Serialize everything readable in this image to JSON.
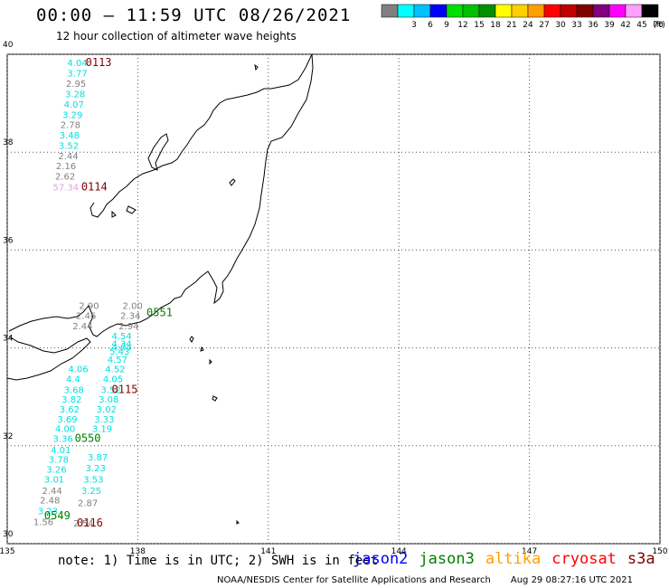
{
  "header": {
    "title": "00:00 – 11:59 UTC 08/26/2021",
    "subtitle": "12 hour collection of altimeter wave heights"
  },
  "legend": {
    "unit": "(ft)",
    "bins": [
      {
        "color": "#808080",
        "label": ""
      },
      {
        "color": "#00ffff",
        "label": "3"
      },
      {
        "color": "#00c0ff",
        "label": "6"
      },
      {
        "color": "#0000ff",
        "label": "9"
      },
      {
        "color": "#00e000",
        "label": "12"
      },
      {
        "color": "#00c000",
        "label": "15"
      },
      {
        "color": "#009000",
        "label": "18"
      },
      {
        "color": "#ffff00",
        "label": "21"
      },
      {
        "color": "#ffd000",
        "label": "24"
      },
      {
        "color": "#ffa000",
        "label": "27"
      },
      {
        "color": "#ff0000",
        "label": "30"
      },
      {
        "color": "#c00000",
        "label": "33"
      },
      {
        "color": "#800000",
        "label": "36"
      },
      {
        "color": "#800080",
        "label": "39"
      },
      {
        "color": "#ff00ff",
        "label": "42"
      },
      {
        "color": "#ffa0ff",
        "label": "45"
      },
      {
        "color": "#000000",
        "label": "70"
      }
    ]
  },
  "axes": {
    "lon_labels": [
      "135",
      "138",
      "141",
      "144",
      "147",
      "150"
    ],
    "lat_labels": [
      "30",
      "32",
      "34",
      "36",
      "38",
      "40"
    ]
  },
  "map": {
    "lon_range": [
      135,
      150
    ],
    "lat_range": [
      30,
      40
    ]
  },
  "wave_heights": [
    {
      "text": "4.04",
      "lon": 136.38,
      "lat": 39.76,
      "color": "#00e0e0"
    },
    {
      "text": "3.77",
      "lon": 136.38,
      "lat": 39.55,
      "color": "#00e0e0"
    },
    {
      "text": "2.95",
      "lon": 136.35,
      "lat": 39.33,
      "color": "#808080"
    },
    {
      "text": "3.28",
      "lon": 136.33,
      "lat": 39.12,
      "color": "#00e0e0"
    },
    {
      "text": "4.07",
      "lon": 136.3,
      "lat": 38.91,
      "color": "#00e0e0"
    },
    {
      "text": "3.29",
      "lon": 136.27,
      "lat": 38.7,
      "color": "#00e0e0"
    },
    {
      "text": "2.78",
      "lon": 136.22,
      "lat": 38.49,
      "color": "#808080"
    },
    {
      "text": "3.48",
      "lon": 136.2,
      "lat": 38.28,
      "color": "#00e0e0"
    },
    {
      "text": "3.52",
      "lon": 136.18,
      "lat": 38.07,
      "color": "#00e0e0"
    },
    {
      "text": "2.44",
      "lon": 136.17,
      "lat": 37.86,
      "color": "#808080"
    },
    {
      "text": "2.16",
      "lon": 136.12,
      "lat": 37.65,
      "color": "#808080"
    },
    {
      "text": "2.62",
      "lon": 136.1,
      "lat": 37.44,
      "color": "#808080"
    },
    {
      "text": "57.34",
      "lon": 136.05,
      "lat": 37.22,
      "color": "#e0a0e0"
    },
    {
      "text": "2.90",
      "lon": 136.65,
      "lat": 34.8,
      "color": "#808080"
    },
    {
      "text": "2.46",
      "lon": 136.58,
      "lat": 34.59,
      "color": "#808080"
    },
    {
      "text": "2.44",
      "lon": 136.5,
      "lat": 34.38,
      "color": "#808080"
    },
    {
      "text": "2.00",
      "lon": 137.65,
      "lat": 34.8,
      "color": "#808080"
    },
    {
      "text": "2.34",
      "lon": 137.6,
      "lat": 34.59,
      "color": "#808080"
    },
    {
      "text": "2.94",
      "lon": 137.56,
      "lat": 34.38,
      "color": "#808080"
    },
    {
      "text": "4.54",
      "lon": 137.4,
      "lat": 34.18,
      "color": "#00e0e0"
    },
    {
      "text": "4.34",
      "lon": 137.4,
      "lat": 34.02,
      "color": "#00e0e0"
    },
    {
      "text": "5.43",
      "lon": 137.35,
      "lat": 33.86,
      "color": "#00e0e0"
    },
    {
      "text": "4.57",
      "lon": 137.3,
      "lat": 33.7,
      "color": "#00e0e0"
    },
    {
      "text": "4.52",
      "lon": 137.25,
      "lat": 33.5,
      "color": "#00e0e0"
    },
    {
      "text": "4.05",
      "lon": 137.2,
      "lat": 33.3,
      "color": "#00e0e0"
    },
    {
      "text": "3.52",
      "lon": 137.15,
      "lat": 33.08,
      "color": "#00e0e0"
    },
    {
      "text": "3.08",
      "lon": 137.1,
      "lat": 32.88,
      "color": "#00e0e0"
    },
    {
      "text": "3.02",
      "lon": 137.05,
      "lat": 32.68,
      "color": "#00e0e0"
    },
    {
      "text": "3.33",
      "lon": 137.0,
      "lat": 32.48,
      "color": "#00e0e0"
    },
    {
      "text": "3.19",
      "lon": 136.95,
      "lat": 32.28,
      "color": "#00e0e0"
    },
    {
      "text": "3.87",
      "lon": 136.85,
      "lat": 31.7,
      "color": "#00e0e0"
    },
    {
      "text": "3.23",
      "lon": 136.8,
      "lat": 31.48,
      "color": "#00e0e0"
    },
    {
      "text": "3.53",
      "lon": 136.75,
      "lat": 31.25,
      "color": "#00e0e0"
    },
    {
      "text": "3.25",
      "lon": 136.7,
      "lat": 31.02,
      "color": "#00e0e0"
    },
    {
      "text": "2.87",
      "lon": 136.62,
      "lat": 30.77,
      "color": "#808080"
    },
    {
      "text": "2.54",
      "lon": 136.52,
      "lat": 30.35,
      "color": "#808080"
    },
    {
      "text": "4.06",
      "lon": 136.4,
      "lat": 33.5,
      "color": "#00e0e0"
    },
    {
      "text": "4.4",
      "lon": 136.35,
      "lat": 33.3,
      "color": "#00e0e0"
    },
    {
      "text": "3.68",
      "lon": 136.3,
      "lat": 33.08,
      "color": "#00e0e0"
    },
    {
      "text": "3.82",
      "lon": 136.25,
      "lat": 32.88,
      "color": "#00e0e0"
    },
    {
      "text": "3.62",
      "lon": 136.2,
      "lat": 32.68,
      "color": "#00e0e0"
    },
    {
      "text": "3.69",
      "lon": 136.15,
      "lat": 32.48,
      "color": "#00e0e0"
    },
    {
      "text": "4.00",
      "lon": 136.1,
      "lat": 32.28,
      "color": "#00e0e0"
    },
    {
      "text": "3.36",
      "lon": 136.05,
      "lat": 32.08,
      "color": "#00e0e0"
    },
    {
      "text": "4.01",
      "lon": 136.0,
      "lat": 31.85,
      "color": "#00e0e0"
    },
    {
      "text": "3.78",
      "lon": 135.95,
      "lat": 31.65,
      "color": "#00e0e0"
    },
    {
      "text": "3.26",
      "lon": 135.9,
      "lat": 31.45,
      "color": "#00e0e0"
    },
    {
      "text": "3.01",
      "lon": 135.85,
      "lat": 31.25,
      "color": "#00e0e0"
    },
    {
      "text": "2.44",
      "lon": 135.8,
      "lat": 31.02,
      "color": "#808080"
    },
    {
      "text": "2.48",
      "lon": 135.75,
      "lat": 30.82,
      "color": "#808080"
    },
    {
      "text": "3.23",
      "lon": 135.7,
      "lat": 30.6,
      "color": "#00e0e0"
    },
    {
      "text": "1.56",
      "lon": 135.6,
      "lat": 30.38,
      "color": "#808080"
    },
    {
      "text": "4.04",
      "lon": 137.4,
      "lat": 33.95,
      "color": "#00e0e0"
    }
  ],
  "pass_times": [
    {
      "text": "0113",
      "lon": 136.8,
      "lat": 39.76,
      "color": "#800000"
    },
    {
      "text": "0114",
      "lon": 136.7,
      "lat": 37.22,
      "color": "#800000"
    },
    {
      "text": "0551",
      "lon": 138.2,
      "lat": 34.65,
      "color": "#008000"
    },
    {
      "text": "0115",
      "lon": 137.4,
      "lat": 33.08,
      "color": "#800000"
    },
    {
      "text": "0550",
      "lon": 136.55,
      "lat": 32.08,
      "color": "#008000"
    },
    {
      "text": "0549",
      "lon": 135.85,
      "lat": 30.5,
      "color": "#008000"
    },
    {
      "text": "0116",
      "lon": 136.6,
      "lat": 30.35,
      "color": "#800000"
    }
  ],
  "note": "note: 1) Time is in UTC; 2) SWH is in feet",
  "satellites": [
    {
      "name": "jason2",
      "color": "#0000ff"
    },
    {
      "name": "jason3",
      "color": "#008000"
    },
    {
      "name": "altika",
      "color": "#ffa000"
    },
    {
      "name": "cryosat",
      "color": "#ff0000"
    },
    {
      "name": "s3a",
      "color": "#800000"
    }
  ],
  "credit": "NOAA/NESDIS Center for Satellite Applications and Research",
  "timestamp": "Aug 29 08:27:16 UTC 2021",
  "colors": {
    "grid": "#555555",
    "coast": "#000000",
    "frame": "#000000"
  }
}
